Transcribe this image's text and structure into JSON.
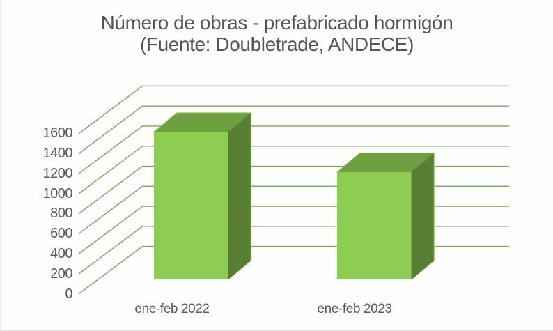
{
  "title": {
    "line1": "Número de obras - prefabricado hormigón",
    "line2": "(Fuente: Doubletrade, ANDECE)"
  },
  "chart_data": {
    "type": "bar",
    "projection": "3d",
    "title": "Número de obras - prefabricado hormigón (Fuente: Doubletrade, ANDECE)",
    "categories": [
      "ene-feb 2022",
      "ene-feb 2023"
    ],
    "values": [
      1470,
      1070
    ],
    "xlabel": "",
    "ylabel": "",
    "ylim": [
      0,
      1600
    ],
    "ytick_step": 200,
    "yticks": [
      "0",
      "200",
      "400",
      "600",
      "800",
      "1000",
      "1200",
      "1400",
      "1600"
    ],
    "grid": true,
    "legend": false,
    "colors": {
      "bar_front": "#8DCE52",
      "bar_top": "#6FA040",
      "bar_side": "#587F31",
      "bar_edge_top": "#7FB24A",
      "bar_edge_side": "#648C38",
      "edge_highlight": "#A5D96B",
      "gridline": "#74A758",
      "text": "#595959",
      "title_text": "#555555"
    }
  }
}
